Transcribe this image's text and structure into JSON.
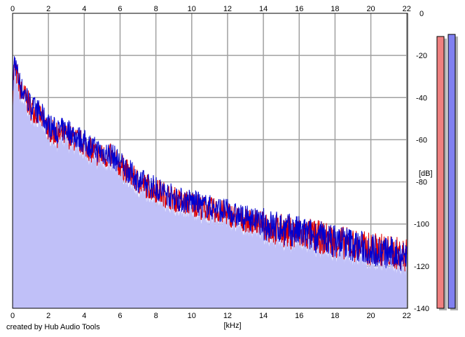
{
  "footer": {
    "credit": "created by Hub Audio Tools"
  },
  "chart_data": {
    "type": "line",
    "xlabel": "[kHz]",
    "ylabel": "[dB]",
    "xlim": [
      0,
      22.05
    ],
    "ylim": [
      -140,
      0
    ],
    "x_ticks": [
      "0",
      "2",
      "4",
      "6",
      "8",
      "10",
      "12",
      "14",
      "16",
      "18",
      "20",
      "22"
    ],
    "y_ticks": [
      "0",
      "-20",
      "-40",
      "-60",
      "-80",
      "-100",
      "-120",
      "-140"
    ],
    "grid": true,
    "fill_color": "#c0c0f8",
    "series": [
      {
        "color": "#e00000",
        "points": [
          [
            0,
            -38
          ],
          [
            0.1,
            -24
          ],
          [
            0.25,
            -30
          ],
          [
            0.5,
            -38
          ],
          [
            0.75,
            -40
          ],
          [
            1,
            -45
          ],
          [
            1.5,
            -48
          ],
          [
            2,
            -55
          ],
          [
            2.5,
            -58
          ],
          [
            3,
            -58
          ],
          [
            3.5,
            -60
          ],
          [
            4,
            -62
          ],
          [
            4.5,
            -66
          ],
          [
            5,
            -68
          ],
          [
            5.5,
            -68
          ],
          [
            6,
            -72
          ],
          [
            6.5,
            -76
          ],
          [
            7,
            -80
          ],
          [
            7.5,
            -82
          ],
          [
            8,
            -84
          ],
          [
            8.5,
            -86
          ],
          [
            9,
            -88
          ],
          [
            9.5,
            -90
          ],
          [
            10,
            -90
          ],
          [
            10.5,
            -92
          ],
          [
            11,
            -93
          ],
          [
            11.5,
            -94
          ],
          [
            12,
            -95
          ],
          [
            12.5,
            -97
          ],
          [
            13,
            -98
          ],
          [
            13.5,
            -99
          ],
          [
            14,
            -100
          ],
          [
            14.5,
            -102
          ],
          [
            15,
            -103
          ],
          [
            15.5,
            -104
          ],
          [
            16,
            -105
          ],
          [
            16.5,
            -105
          ],
          [
            17,
            -106
          ],
          [
            17.5,
            -107
          ],
          [
            18,
            -108
          ],
          [
            18.5,
            -109
          ],
          [
            19,
            -110
          ],
          [
            19.5,
            -111
          ],
          [
            20,
            -112
          ],
          [
            20.5,
            -112
          ],
          [
            21,
            -113
          ],
          [
            21.5,
            -114
          ],
          [
            22,
            -115
          ]
        ]
      },
      {
        "color": "#0000d0",
        "points": [
          [
            0,
            -36
          ],
          [
            0.1,
            -22
          ],
          [
            0.25,
            -28
          ],
          [
            0.5,
            -36
          ],
          [
            0.75,
            -39
          ],
          [
            1,
            -44
          ],
          [
            1.5,
            -47
          ],
          [
            2,
            -53
          ],
          [
            2.5,
            -56
          ],
          [
            3,
            -55
          ],
          [
            3.5,
            -58
          ],
          [
            4,
            -61
          ],
          [
            4.5,
            -64
          ],
          [
            5,
            -66
          ],
          [
            5.5,
            -67
          ],
          [
            6,
            -71
          ],
          [
            6.5,
            -75
          ],
          [
            7,
            -79
          ],
          [
            7.5,
            -81
          ],
          [
            8,
            -83
          ],
          [
            8.5,
            -85
          ],
          [
            9,
            -87
          ],
          [
            9.5,
            -89
          ],
          [
            10,
            -89
          ],
          [
            10.5,
            -91
          ],
          [
            11,
            -92
          ],
          [
            11.5,
            -93
          ],
          [
            12,
            -94
          ],
          [
            12.5,
            -96
          ],
          [
            13,
            -97
          ],
          [
            13.5,
            -98
          ],
          [
            14,
            -100
          ],
          [
            14.5,
            -101
          ],
          [
            15,
            -102
          ],
          [
            15.5,
            -103
          ],
          [
            16,
            -104
          ],
          [
            16.5,
            -105
          ],
          [
            17,
            -106
          ],
          [
            17.5,
            -107
          ],
          [
            18,
            -108
          ],
          [
            18.5,
            -108
          ],
          [
            19,
            -110
          ],
          [
            19.5,
            -111
          ],
          [
            20,
            -112
          ],
          [
            20.5,
            -113
          ],
          [
            21,
            -114
          ],
          [
            21.5,
            -114
          ],
          [
            22,
            -115
          ]
        ]
      }
    ],
    "level_meters": [
      {
        "channel": "left",
        "peak_db": -11,
        "color": "#f08080"
      },
      {
        "channel": "right",
        "peak_db": -10,
        "color": "#8080f0"
      }
    ]
  }
}
